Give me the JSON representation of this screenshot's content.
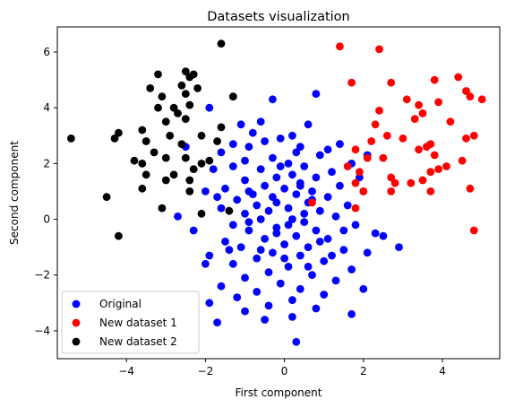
{
  "chart_data": {
    "type": "scatter",
    "title": "Datasets visualization",
    "xlabel": "First component",
    "ylabel": "Second component",
    "xlim": [
      -5.75,
      5.45
    ],
    "ylim": [
      -5.0,
      6.9
    ],
    "xticks": [
      -4,
      -2,
      0,
      2,
      4
    ],
    "yticks": [
      -4,
      -2,
      0,
      2,
      4,
      6
    ],
    "grid": false,
    "legend_position": "lower-left",
    "series": [
      {
        "name": "Original",
        "color": "#0000ff",
        "points": [
          [
            0.8,
            4.5
          ],
          [
            -0.3,
            4.3
          ],
          [
            -1.9,
            4.0
          ],
          [
            -0.6,
            3.5
          ],
          [
            0.6,
            3.4
          ],
          [
            -1.1,
            3.4
          ],
          [
            -0.8,
            3.1
          ],
          [
            0.2,
            3.0
          ],
          [
            -0.1,
            2.9
          ],
          [
            -1.3,
            2.7
          ],
          [
            -0.5,
            2.8
          ],
          [
            1.4,
            2.7
          ],
          [
            0.4,
            2.6
          ],
          [
            -0.9,
            2.6
          ],
          [
            1.1,
            2.5
          ],
          [
            -1.6,
            2.4
          ],
          [
            0.9,
            2.3
          ],
          [
            -0.3,
            2.2
          ],
          [
            2.1,
            2.3
          ],
          [
            -1.0,
            2.1
          ],
          [
            0.1,
            2.0
          ],
          [
            1.7,
            2.0
          ],
          [
            -1.3,
            1.9
          ],
          [
            0.5,
            1.9
          ],
          [
            -0.6,
            1.8
          ],
          [
            1.2,
            1.7
          ],
          [
            -1.8,
            1.8
          ],
          [
            0.2,
            1.6
          ],
          [
            -0.2,
            1.5
          ],
          [
            0.8,
            1.5
          ],
          [
            1.9,
            1.5
          ],
          [
            -1.0,
            1.4
          ],
          [
            0.4,
            1.3
          ],
          [
            -0.5,
            1.2
          ],
          [
            1.4,
            1.2
          ],
          [
            -1.5,
            1.1
          ],
          [
            0.0,
            1.1
          ],
          [
            0.7,
            1.0
          ],
          [
            -0.9,
            1.0
          ],
          [
            2.0,
            1.0
          ],
          [
            -2.0,
            1.0
          ],
          [
            0.3,
            0.9
          ],
          [
            -0.3,
            0.8
          ],
          [
            1.1,
            0.8
          ],
          [
            -1.2,
            0.7
          ],
          [
            0.6,
            0.6
          ],
          [
            -0.7,
            0.5
          ],
          [
            1.6,
            0.5
          ],
          [
            0.1,
            0.4
          ],
          [
            -1.6,
            0.4
          ],
          [
            -0.4,
            0.3
          ],
          [
            0.9,
            0.3
          ],
          [
            -1.0,
            0.2
          ],
          [
            1.3,
            0.1
          ],
          [
            0.2,
            0.0
          ],
          [
            -2.7,
            0.1
          ],
          [
            -0.6,
            0.0
          ],
          [
            0.5,
            -0.1
          ],
          [
            -1.3,
            -0.2
          ],
          [
            1.8,
            -0.2
          ],
          [
            -0.2,
            -0.3
          ],
          [
            0.8,
            -0.4
          ],
          [
            -0.9,
            -0.4
          ],
          [
            2.3,
            -0.5
          ],
          [
            -2.3,
            -0.4
          ],
          [
            0.3,
            -0.6
          ],
          [
            -0.5,
            -0.7
          ],
          [
            1.1,
            -0.7
          ],
          [
            -1.5,
            -0.8
          ],
          [
            0.0,
            -0.9
          ],
          [
            0.6,
            -1.0
          ],
          [
            -1.1,
            -1.0
          ],
          [
            1.5,
            -1.1
          ],
          [
            -0.3,
            -1.2
          ],
          [
            2.1,
            -1.2
          ],
          [
            -1.9,
            -1.3
          ],
          [
            0.4,
            -1.3
          ],
          [
            -0.7,
            -1.4
          ],
          [
            1.0,
            -1.5
          ],
          [
            -1.3,
            -1.6
          ],
          [
            0.1,
            -1.7
          ],
          [
            -2.0,
            -1.6
          ],
          [
            1.7,
            -1.8
          ],
          [
            -0.4,
            -1.9
          ],
          [
            0.7,
            -2.0
          ],
          [
            -1.0,
            -2.1
          ],
          [
            1.3,
            -2.2
          ],
          [
            -0.1,
            -2.3
          ],
          [
            -1.6,
            -2.4
          ],
          [
            0.4,
            -2.5
          ],
          [
            2.0,
            -2.5
          ],
          [
            -0.7,
            -2.6
          ],
          [
            1.0,
            -2.7
          ],
          [
            -1.2,
            -2.8
          ],
          [
            0.2,
            -2.9
          ],
          [
            -0.4,
            -3.1
          ],
          [
            0.8,
            -3.2
          ],
          [
            -1.9,
            -3.0
          ],
          [
            -1.0,
            -3.3
          ],
          [
            0.2,
            -3.5
          ],
          [
            -0.5,
            -3.6
          ],
          [
            1.7,
            -3.4
          ],
          [
            -1.7,
            -3.7
          ],
          [
            0.3,
            -4.4
          ],
          [
            2.9,
            -1.0
          ],
          [
            2.5,
            -0.6
          ],
          [
            -1.3,
            4.4
          ],
          [
            -2.5,
            2.6
          ],
          [
            0.3,
            2.4
          ],
          [
            -0.1,
            1.9
          ],
          [
            0.4,
            1.2
          ],
          [
            -0.8,
            0.9
          ],
          [
            0.5,
            0.2
          ],
          [
            -0.2,
            -0.5
          ],
          [
            0.9,
            -0.8
          ],
          [
            -0.6,
            -1.1
          ],
          [
            0.0,
            -1.4
          ],
          [
            1.2,
            -1.3
          ],
          [
            -1.4,
            -1.1
          ],
          [
            0.6,
            -1.7
          ],
          [
            -0.2,
            0.6
          ],
          [
            0.1,
            -0.2
          ],
          [
            -0.9,
            -0.1
          ],
          [
            0.7,
            0.7
          ],
          [
            1.5,
            -0.4
          ],
          [
            -1.7,
            0.8
          ]
        ]
      },
      {
        "name": "New dataset 1",
        "color": "#ff0000",
        "points": [
          [
            1.4,
            6.2
          ],
          [
            2.4,
            6.1
          ],
          [
            1.7,
            4.9
          ],
          [
            2.7,
            4.9
          ],
          [
            4.4,
            5.1
          ],
          [
            3.8,
            5.0
          ],
          [
            4.6,
            4.6
          ],
          [
            5.0,
            4.3
          ],
          [
            3.1,
            4.3
          ],
          [
            3.4,
            4.1
          ],
          [
            3.9,
            4.2
          ],
          [
            4.7,
            4.4
          ],
          [
            2.4,
            3.9
          ],
          [
            3.5,
            3.8
          ],
          [
            3.3,
            3.6
          ],
          [
            2.3,
            3.4
          ],
          [
            4.2,
            3.5
          ],
          [
            2.6,
            3.0
          ],
          [
            4.8,
            3.0
          ],
          [
            2.2,
            2.8
          ],
          [
            3.7,
            2.7
          ],
          [
            4.6,
            2.9
          ],
          [
            3.0,
            2.9
          ],
          [
            3.6,
            2.6
          ],
          [
            3.4,
            2.5
          ],
          [
            1.8,
            2.5
          ],
          [
            2.5,
            2.2
          ],
          [
            3.8,
            2.3
          ],
          [
            4.5,
            2.1
          ],
          [
            1.6,
            1.9
          ],
          [
            3.9,
            1.8
          ],
          [
            2.1,
            2.2
          ],
          [
            4.1,
            1.9
          ],
          [
            1.9,
            1.7
          ],
          [
            3.7,
            1.7
          ],
          [
            2.7,
            1.5
          ],
          [
            3.5,
            1.4
          ],
          [
            1.8,
            1.3
          ],
          [
            2.8,
            1.3
          ],
          [
            3.2,
            1.3
          ],
          [
            4.7,
            1.1
          ],
          [
            2.0,
            1.0
          ],
          [
            3.7,
            1.0
          ],
          [
            2.7,
            1.0
          ],
          [
            1.8,
            0.4
          ],
          [
            0.7,
            0.6
          ],
          [
            4.8,
            -0.4
          ]
        ]
      },
      {
        "name": "New dataset 2",
        "color": "#000000",
        "points": [
          [
            -1.6,
            6.3
          ],
          [
            -2.5,
            5.3
          ],
          [
            -3.2,
            5.2
          ],
          [
            -2.4,
            5.1
          ],
          [
            -2.3,
            5.2
          ],
          [
            -2.6,
            4.8
          ],
          [
            -2.2,
            4.7
          ],
          [
            -3.4,
            4.7
          ],
          [
            -2.5,
            4.5
          ],
          [
            -3.1,
            4.4
          ],
          [
            -1.3,
            4.4
          ],
          [
            -2.4,
            4.1
          ],
          [
            -2.8,
            4.0
          ],
          [
            -3.2,
            4.0
          ],
          [
            -2.7,
            3.8
          ],
          [
            -2.5,
            3.6
          ],
          [
            -3.0,
            3.5
          ],
          [
            -1.6,
            3.3
          ],
          [
            -3.6,
            3.2
          ],
          [
            -2.1,
            3.0
          ],
          [
            -4.2,
            3.1
          ],
          [
            -2.9,
            3.0
          ],
          [
            -4.3,
            2.9
          ],
          [
            -3.5,
            2.8
          ],
          [
            -1.7,
            2.8
          ],
          [
            -2.6,
            2.7
          ],
          [
            -5.4,
            2.9
          ],
          [
            -3.3,
            2.4
          ],
          [
            -2.5,
            2.2
          ],
          [
            -2.1,
            2.0
          ],
          [
            -3.8,
            2.1
          ],
          [
            -3.0,
            2.2
          ],
          [
            -1.9,
            2.1
          ],
          [
            -3.6,
            2.0
          ],
          [
            -2.3,
            1.8
          ],
          [
            -3.5,
            1.6
          ],
          [
            -2.8,
            1.6
          ],
          [
            -3.0,
            1.4
          ],
          [
            -2.4,
            1.4
          ],
          [
            -3.6,
            1.1
          ],
          [
            -2.4,
            1.0
          ],
          [
            -4.5,
            0.8
          ],
          [
            -3.1,
            0.4
          ],
          [
            -2.1,
            0.2
          ],
          [
            -1.4,
            0.3
          ],
          [
            -4.2,
            -0.6
          ]
        ]
      }
    ]
  }
}
